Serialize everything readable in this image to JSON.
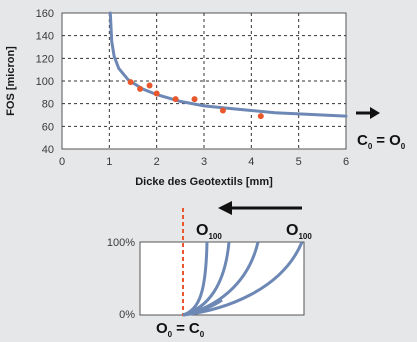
{
  "chart_data": [
    {
      "type": "line",
      "xlabel": "Dicke des Geotextils [mm]",
      "ylabel": "FOS [micron]",
      "xlim": [
        0,
        6
      ],
      "ylim": [
        40,
        160
      ],
      "x_ticks": [
        0,
        1,
        2,
        3,
        4,
        5,
        6
      ],
      "y_ticks": [
        40,
        60,
        80,
        100,
        120,
        140,
        160
      ],
      "grid": true,
      "series": [
        {
          "kind": "line",
          "color": "#6d88b5",
          "x": [
            1.02,
            1.05,
            1.1,
            1.2,
            1.4,
            1.7,
            2.0,
            2.5,
            3.0,
            3.5,
            4.0,
            4.5,
            5.0,
            5.5,
            6.0
          ],
          "y": [
            160,
            135,
            122,
            111,
            101,
            93,
            88,
            82,
            78,
            76,
            74,
            72,
            71,
            70,
            69
          ]
        },
        {
          "kind": "scatter",
          "color": "#e8582c",
          "x": [
            1.45,
            1.65,
            1.85,
            2.0,
            2.4,
            2.8,
            3.4,
            4.2
          ],
          "y": [
            99,
            93,
            96,
            89,
            84,
            84,
            74,
            69
          ]
        }
      ],
      "annotation": {
        "label_main": "C",
        "label_sub": "0",
        "label_eq": "=",
        "label_main2": "O",
        "label_sub2": "0",
        "arrow": "right"
      }
    },
    {
      "type": "diagram",
      "ylabel_top": "100%",
      "ylabel_bottom": "0%",
      "arrow_direction": "left",
      "top_label_left": {
        "main": "O",
        "sub": "100"
      },
      "top_label_right": {
        "main": "O",
        "sub": "100"
      },
      "bottom_label": {
        "main": "O",
        "sub": "0",
        "eq": "=",
        "main2": "C",
        "sub2": "0"
      },
      "curve_color": "#6d88b5",
      "dashed_line_color": "#e8582c",
      "curves": 5
    }
  ]
}
